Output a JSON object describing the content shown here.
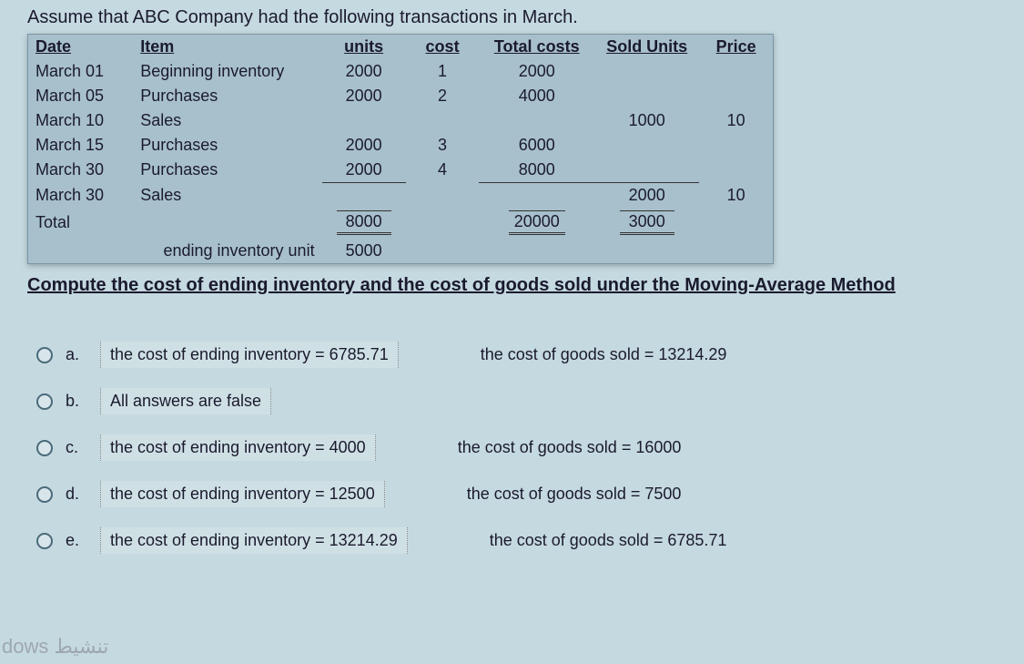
{
  "intro": "Assume that ABC Company had the following transactions in March.",
  "table": {
    "headers": {
      "date": "Date",
      "item": "Item",
      "units": "units",
      "cost": "cost",
      "total": "Total costs",
      "sold": "Sold Units",
      "price": "Price"
    },
    "rows": [
      {
        "date": "March 01",
        "item": "Beginning inventory",
        "units": "2000",
        "cost": "1",
        "total": "2000",
        "sold": "",
        "price": ""
      },
      {
        "date": "March 05",
        "item": "Purchases",
        "units": "2000",
        "cost": "2",
        "total": "4000",
        "sold": "",
        "price": ""
      },
      {
        "date": "March 10",
        "item": "Sales",
        "units": "",
        "cost": "",
        "total": "",
        "sold": "1000",
        "price": "10"
      },
      {
        "date": "March 15",
        "item": "Purchases",
        "units": "2000",
        "cost": "3",
        "total": "6000",
        "sold": "",
        "price": ""
      },
      {
        "date": "March 30",
        "item": "Purchases",
        "units": "2000",
        "cost": "4",
        "total": "8000",
        "sold": "",
        "price": ""
      },
      {
        "date": "March 30",
        "item": "Sales",
        "units": "",
        "cost": "",
        "total": "",
        "sold": "2000",
        "price": "10"
      }
    ],
    "total_label": "Total",
    "total_units": "8000",
    "total_costs": "20000",
    "total_sold": "3000",
    "ei_label": "ending inventory unit",
    "ei_units": "5000"
  },
  "question": "Compute the cost of ending inventory and the cost of goods sold under the Moving-Average Method",
  "options": [
    {
      "letter": "a.",
      "ei": "the cost of ending inventory =  6785.71",
      "cogs": "the cost of goods sold = 13214.29"
    },
    {
      "letter": "b.",
      "ei": "All answers are false",
      "cogs": ""
    },
    {
      "letter": "c.",
      "ei": "the cost of ending inventory =  4000",
      "cogs": "the cost of goods sold = 16000"
    },
    {
      "letter": "d.",
      "ei": "the cost of ending inventory =  12500",
      "cogs": "the cost of goods sold = 7500"
    },
    {
      "letter": "e.",
      "ei": "the cost of ending inventory =  13214.29",
      "cogs": "the cost of goods sold = 6785.71"
    }
  ],
  "watermark": "dows تنشيط"
}
